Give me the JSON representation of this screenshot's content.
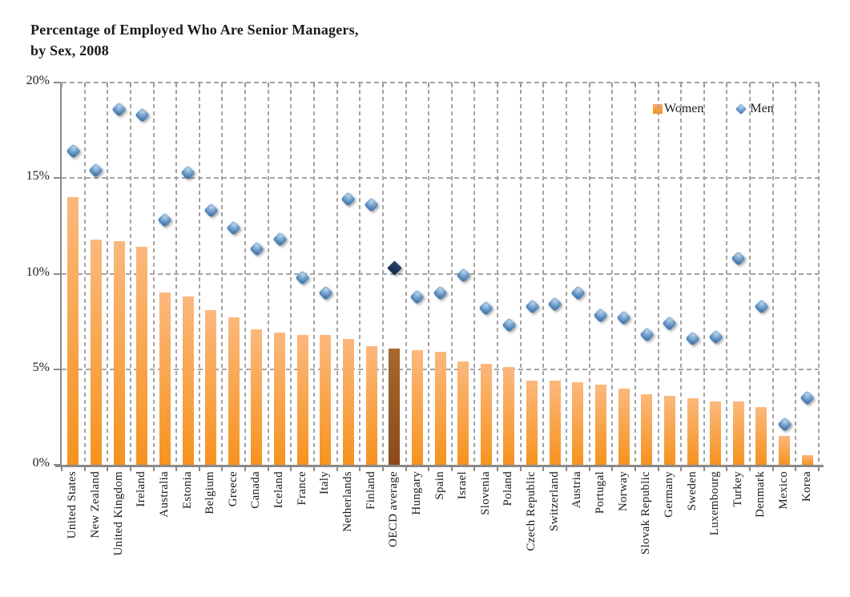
{
  "title": {
    "line1": "Percentage of Employed Who Are Senior Managers,",
    "line2": "by Sex, 2008"
  },
  "legend": {
    "women_label": "Women",
    "men_label": "Men"
  },
  "y_axis": {
    "tick_labels": [
      "20%",
      "15%",
      "10%",
      "5%",
      "0%"
    ],
    "tick_values": [
      20,
      15,
      10,
      5,
      0
    ]
  },
  "colors": {
    "bar_top": "#FBB87D",
    "bar_bottom": "#F6931F",
    "oecd_bar_top": "#A8672F",
    "oecd_bar_bottom": "#8C4A19",
    "men_diamond": "#4A7FB5",
    "oecd_diamond": "#183455",
    "grid": "#A3A3A3",
    "axis": "#8A8A8A",
    "text": "#1A1A1A"
  },
  "chart_data": {
    "type": "bar",
    "subtype": "bar-with-scatter-overlay",
    "title": "Percentage of Employed Who Are Senior Managers, by Sex, 2008",
    "xlabel": "",
    "ylabel": "",
    "ylim": [
      0,
      20
    ],
    "y_ticks_percent": [
      0,
      5,
      10,
      15,
      20
    ],
    "grid": "dashed horizontal at ticks, dashed vertical at category boundaries",
    "legend_position": "top-right inside plot",
    "highlight_category": "OECD average",
    "categories": [
      "United States",
      "New Zealand",
      "United Kingdom",
      "Ireland",
      "Australia",
      "Estonia",
      "Belgium",
      "Greece",
      "Canada",
      "Iceland",
      "France",
      "Italy",
      "Netherlands",
      "Finland",
      "OECD average",
      "Hungary",
      "Spain",
      "Israel",
      "Slovenia",
      "Poland",
      "Czech Republic",
      "Switzerland",
      "Austria",
      "Portugal",
      "Norway",
      "Slovak Republic",
      "Germany",
      "Sweden",
      "Luxembourg",
      "Turkey",
      "Denmark",
      "Mexico",
      "Korea"
    ],
    "series": [
      {
        "name": "Women",
        "type": "bar",
        "values": [
          14.0,
          11.8,
          11.7,
          11.4,
          9.0,
          8.8,
          8.1,
          7.7,
          7.1,
          6.9,
          6.8,
          6.8,
          6.6,
          6.2,
          6.1,
          6.0,
          5.9,
          5.4,
          5.3,
          5.1,
          4.4,
          4.4,
          4.3,
          4.2,
          4.0,
          3.7,
          3.6,
          3.5,
          3.3,
          3.3,
          3.0,
          1.5,
          0.5
        ]
      },
      {
        "name": "Men",
        "type": "scatter-diamond",
        "values": [
          16.4,
          15.4,
          18.6,
          18.3,
          12.8,
          15.3,
          13.3,
          12.4,
          11.3,
          11.8,
          9.8,
          9.0,
          13.9,
          13.6,
          10.3,
          8.8,
          9.0,
          9.9,
          8.2,
          7.3,
          8.3,
          8.4,
          9.0,
          7.8,
          7.7,
          6.8,
          7.4,
          6.6,
          6.7,
          10.8,
          8.3,
          2.1,
          3.5
        ]
      }
    ]
  }
}
